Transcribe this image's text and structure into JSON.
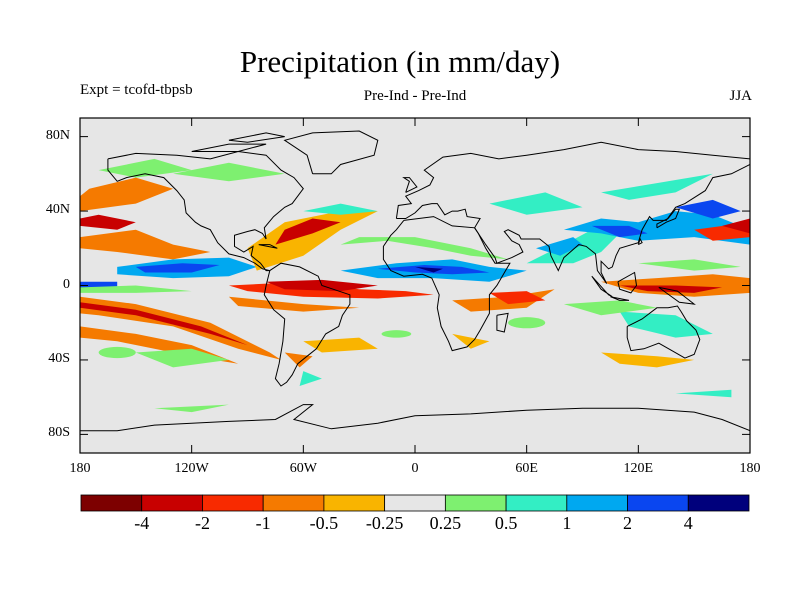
{
  "title": "Precipitation (in mm/day)",
  "subtitle_left": "Expt = tcofd-tbpsb",
  "subtitle_center": "Pre-Ind - Pre-Ind",
  "subtitle_right": "JJA",
  "lat_ticks": [
    "80N",
    "40N",
    "0",
    "40S",
    "80S"
  ],
  "lon_ticks": [
    "180",
    "120W",
    "60W",
    "0",
    "60E",
    "120E",
    "180"
  ],
  "colorbar": {
    "colors": [
      "#7d0000",
      "#c80000",
      "#f82a00",
      "#f57a00",
      "#f9b400",
      "#e6e6e6",
      "#7ef070",
      "#33eec4",
      "#00a8f0",
      "#0a46f0",
      "#00007c"
    ],
    "labels": [
      "-4",
      "-2",
      "-1",
      "-0.5",
      "-0.25",
      "0.25",
      "0.5",
      "1",
      "2",
      "4"
    ]
  },
  "colors": {
    "neutral": "#e6e6e6",
    "coast": "#000000"
  }
}
